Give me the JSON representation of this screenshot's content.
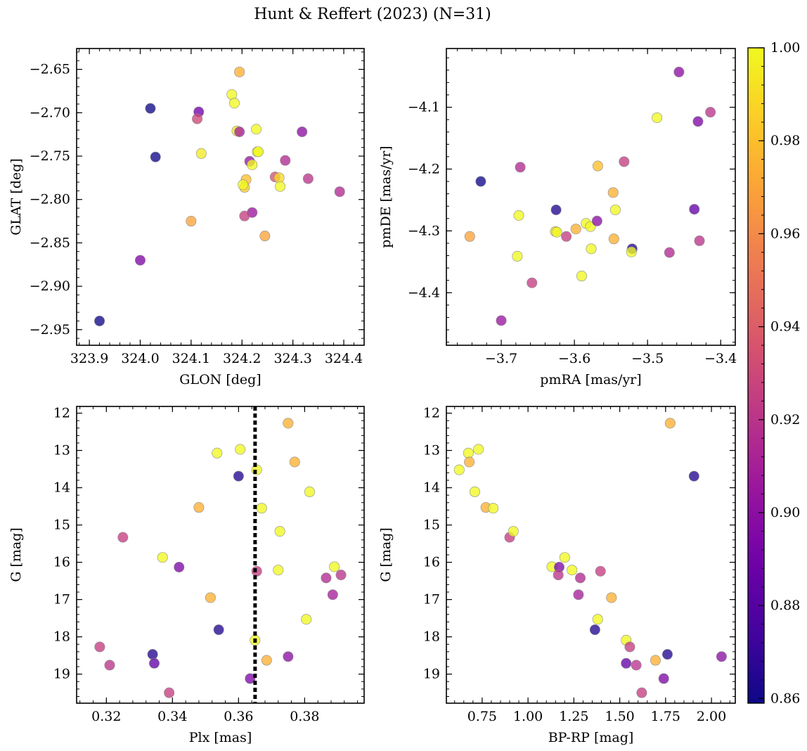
{
  "title": "Hunt & Reffert (2023) (N=31)",
  "colors": {
    "cmap": [
      "#0d0887",
      "#46039f",
      "#7201a8",
      "#9c179e",
      "#bd3786",
      "#d8576b",
      "#ed7953",
      "#fb9f3a",
      "#fdca26",
      "#f0f921"
    ],
    "marker_alpha": 0.78,
    "marker_edge": "#8c8c8c",
    "vline": "#000000"
  },
  "chart_data": [
    {
      "type": "scatter",
      "name": "glon-glat",
      "xlabel": "GLON [deg]",
      "ylabel": "GLAT [deg]",
      "xlim": [
        323.875,
        324.44
      ],
      "ylim": [
        -2.968,
        -2.626
      ],
      "xticks": [
        323.9,
        324.0,
        324.1,
        324.2,
        324.3,
        324.4
      ],
      "xtick_labels": [
        "323.9",
        "324.0",
        "324.1",
        "324.2",
        "324.3",
        "324.4"
      ],
      "yticks": [
        -2.65,
        -2.7,
        -2.75,
        -2.8,
        -2.85,
        -2.9,
        -2.95
      ],
      "ytick_labels": [
        "−2.65",
        "−2.70",
        "−2.75",
        "−2.80",
        "−2.85",
        "−2.90",
        "−2.95"
      ],
      "points": [
        {
          "x": 323.92,
          "y": -2.94,
          "c": 0.86
        },
        {
          "x": 324.02,
          "y": -2.695,
          "c": 0.86
        },
        {
          "x": 324.03,
          "y": -2.751,
          "c": 0.86
        },
        {
          "x": 324.0,
          "y": -2.87,
          "c": 0.895
        },
        {
          "x": 324.115,
          "y": -2.699,
          "c": 0.89
        },
        {
          "x": 324.112,
          "y": -2.707,
          "c": 0.93
        },
        {
          "x": 324.12,
          "y": -2.747,
          "c": 0.995
        },
        {
          "x": 324.1,
          "y": -2.825,
          "c": 0.97
        },
        {
          "x": 324.18,
          "y": -2.679,
          "c": 1.0
        },
        {
          "x": 324.185,
          "y": -2.689,
          "c": 1.0
        },
        {
          "x": 324.195,
          "y": -2.653,
          "c": 0.975
        },
        {
          "x": 324.19,
          "y": -2.721,
          "c": 0.995
        },
        {
          "x": 324.195,
          "y": -2.722,
          "c": 0.91
        },
        {
          "x": 324.228,
          "y": -2.719,
          "c": 1.0
        },
        {
          "x": 324.23,
          "y": -2.745,
          "c": 1.0
        },
        {
          "x": 324.232,
          "y": -2.745,
          "c": 1.0
        },
        {
          "x": 324.215,
          "y": -2.756,
          "c": 0.905
        },
        {
          "x": 324.22,
          "y": -2.76,
          "c": 1.0
        },
        {
          "x": 324.208,
          "y": -2.777,
          "c": 0.98
        },
        {
          "x": 324.205,
          "y": -2.786,
          "c": 0.985
        },
        {
          "x": 324.202,
          "y": -2.783,
          "c": 1.0
        },
        {
          "x": 324.22,
          "y": -2.815,
          "c": 0.905
        },
        {
          "x": 324.205,
          "y": -2.819,
          "c": 0.925
        },
        {
          "x": 324.245,
          "y": -2.842,
          "c": 0.97
        },
        {
          "x": 324.265,
          "y": -2.774,
          "c": 0.935
        },
        {
          "x": 324.273,
          "y": -2.775,
          "c": 0.99
        },
        {
          "x": 324.275,
          "y": -2.785,
          "c": 1.0
        },
        {
          "x": 324.285,
          "y": -2.755,
          "c": 0.915
        },
        {
          "x": 324.318,
          "y": -2.722,
          "c": 0.9
        },
        {
          "x": 324.33,
          "y": -2.776,
          "c": 0.92
        },
        {
          "x": 324.392,
          "y": -2.791,
          "c": 0.915
        }
      ]
    },
    {
      "type": "scatter",
      "name": "pmra-pmde",
      "xlabel": "pmRA [mas/yr]",
      "ylabel": "pmDE [mas/yr]",
      "xlim": [
        -3.775,
        -3.38
      ],
      "ylim": [
        -4.485,
        -4.005
      ],
      "xticks": [
        -3.7,
        -3.6,
        -3.5,
        -3.4
      ],
      "xtick_labels": [
        "−3.7",
        "−3.6",
        "−3.5",
        "−3.4"
      ],
      "yticks": [
        -4.1,
        -4.2,
        -4.3,
        -4.4
      ],
      "ytick_labels": [
        "−4.1",
        "−4.2",
        "−4.3",
        "−4.4"
      ],
      "points": [
        {
          "x": -3.728,
          "y": -4.22,
          "c": 0.86
        },
        {
          "x": -3.743,
          "y": -4.309,
          "c": 0.97
        },
        {
          "x": -3.7,
          "y": -4.445,
          "c": 0.905
        },
        {
          "x": -3.674,
          "y": -4.197,
          "c": 0.915
        },
        {
          "x": -3.676,
          "y": -4.275,
          "c": 1.0
        },
        {
          "x": -3.678,
          "y": -4.341,
          "c": 1.0
        },
        {
          "x": -3.658,
          "y": -4.384,
          "c": 0.925
        },
        {
          "x": -3.625,
          "y": -4.266,
          "c": 0.865
        },
        {
          "x": -3.626,
          "y": -4.301,
          "c": 0.99
        },
        {
          "x": -3.624,
          "y": -4.302,
          "c": 1.0
        },
        {
          "x": -3.611,
          "y": -4.309,
          "c": 0.925
        },
        {
          "x": -3.598,
          "y": -4.297,
          "c": 0.975
        },
        {
          "x": -3.584,
          "y": -4.288,
          "c": 1.0
        },
        {
          "x": -3.578,
          "y": -4.293,
          "c": 1.0
        },
        {
          "x": -3.577,
          "y": -4.329,
          "c": 1.0
        },
        {
          "x": -3.569,
          "y": -4.284,
          "c": 0.9
        },
        {
          "x": -3.568,
          "y": -4.195,
          "c": 0.98
        },
        {
          "x": -3.59,
          "y": -4.373,
          "c": 1.0
        },
        {
          "x": -3.547,
          "y": -4.238,
          "c": 0.975
        },
        {
          "x": -3.546,
          "y": -4.313,
          "c": 0.975
        },
        {
          "x": -3.544,
          "y": -4.266,
          "c": 1.0
        },
        {
          "x": -3.532,
          "y": -4.188,
          "c": 0.925
        },
        {
          "x": -3.521,
          "y": -4.329,
          "c": 0.865
        },
        {
          "x": -3.522,
          "y": -4.334,
          "c": 1.0
        },
        {
          "x": -3.487,
          "y": -4.117,
          "c": 1.0
        },
        {
          "x": -3.47,
          "y": -4.335,
          "c": 0.915
        },
        {
          "x": -3.457,
          "y": -4.043,
          "c": 0.9
        },
        {
          "x": -3.436,
          "y": -4.265,
          "c": 0.885
        },
        {
          "x": -3.431,
          "y": -4.123,
          "c": 0.895
        },
        {
          "x": -3.429,
          "y": -4.316,
          "c": 0.92
        },
        {
          "x": -3.414,
          "y": -4.108,
          "c": 0.92
        }
      ]
    },
    {
      "type": "scatter",
      "name": "plx-g",
      "xlabel": "Plx [mas]",
      "ylabel": "G [mag]",
      "xlim": [
        0.311,
        0.398
      ],
      "ylim": [
        19.78,
        11.82
      ],
      "xticks": [
        0.32,
        0.34,
        0.36,
        0.38
      ],
      "xtick_labels": [
        "0.32",
        "0.34",
        "0.36",
        "0.38"
      ],
      "yticks": [
        12,
        13,
        14,
        15,
        16,
        17,
        18,
        19
      ],
      "ytick_labels": [
        "12",
        "13",
        "14",
        "15",
        "16",
        "17",
        "18",
        "19"
      ],
      "vline": 0.365,
      "points": [
        {
          "x": 0.318,
          "y": 18.27,
          "c": 0.925
        },
        {
          "x": 0.321,
          "y": 18.76,
          "c": 0.92
        },
        {
          "x": 0.325,
          "y": 15.33,
          "c": 0.925
        },
        {
          "x": 0.334,
          "y": 18.47,
          "c": 0.865
        },
        {
          "x": 0.3345,
          "y": 18.71,
          "c": 0.885
        },
        {
          "x": 0.337,
          "y": 15.87,
          "c": 1.0
        },
        {
          "x": 0.339,
          "y": 19.5,
          "c": 0.925
        },
        {
          "x": 0.342,
          "y": 16.13,
          "c": 0.895
        },
        {
          "x": 0.348,
          "y": 14.53,
          "c": 0.975
        },
        {
          "x": 0.3515,
          "y": 16.95,
          "c": 0.975
        },
        {
          "x": 0.354,
          "y": 17.81,
          "c": 0.865
        },
        {
          "x": 0.3535,
          "y": 13.07,
          "c": 1.0
        },
        {
          "x": 0.36,
          "y": 13.69,
          "c": 0.865
        },
        {
          "x": 0.3605,
          "y": 12.97,
          "c": 1.0
        },
        {
          "x": 0.3635,
          "y": 19.12,
          "c": 0.895
        },
        {
          "x": 0.365,
          "y": 18.09,
          "c": 1.0
        },
        {
          "x": 0.3655,
          "y": 13.52,
          "c": 1.0
        },
        {
          "x": 0.3655,
          "y": 16.24,
          "c": 0.925
        },
        {
          "x": 0.367,
          "y": 14.55,
          "c": 1.0
        },
        {
          "x": 0.3685,
          "y": 18.63,
          "c": 0.975
        },
        {
          "x": 0.372,
          "y": 16.21,
          "c": 1.0
        },
        {
          "x": 0.3725,
          "y": 15.17,
          "c": 1.0
        },
        {
          "x": 0.375,
          "y": 12.27,
          "c": 0.975
        },
        {
          "x": 0.375,
          "y": 18.53,
          "c": 0.9
        },
        {
          "x": 0.377,
          "y": 13.31,
          "c": 0.975
        },
        {
          "x": 0.3805,
          "y": 17.53,
          "c": 1.0
        },
        {
          "x": 0.3815,
          "y": 14.11,
          "c": 1.0
        },
        {
          "x": 0.3865,
          "y": 16.42,
          "c": 0.915
        },
        {
          "x": 0.3885,
          "y": 16.87,
          "c": 0.91
        },
        {
          "x": 0.389,
          "y": 16.12,
          "c": 1.0
        },
        {
          "x": 0.391,
          "y": 16.34,
          "c": 0.92
        }
      ]
    },
    {
      "type": "scatter",
      "name": "bprp-g",
      "xlabel": "BP-RP [mag]",
      "ylabel": "G [mag]",
      "xlim": [
        0.555,
        2.13
      ],
      "ylim": [
        19.78,
        11.82
      ],
      "xticks": [
        0.75,
        1.0,
        1.25,
        1.5,
        1.75,
        2.0
      ],
      "xtick_labels": [
        "0.75",
        "1.00",
        "1.25",
        "1.50",
        "1.75",
        "2.00"
      ],
      "yticks": [
        12,
        13,
        14,
        15,
        16,
        17,
        18,
        19
      ],
      "ytick_labels": [
        "12",
        "13",
        "14",
        "15",
        "16",
        "17",
        "18",
        "19"
      ],
      "points": [
        {
          "x": 0.625,
          "y": 13.52,
          "c": 1.0
        },
        {
          "x": 0.675,
          "y": 13.07,
          "c": 1.0
        },
        {
          "x": 0.68,
          "y": 13.31,
          "c": 0.975
        },
        {
          "x": 0.73,
          "y": 12.97,
          "c": 1.0
        },
        {
          "x": 0.71,
          "y": 14.11,
          "c": 1.0
        },
        {
          "x": 0.77,
          "y": 14.53,
          "c": 0.975
        },
        {
          "x": 0.81,
          "y": 14.55,
          "c": 1.0
        },
        {
          "x": 0.9,
          "y": 15.33,
          "c": 0.925
        },
        {
          "x": 0.92,
          "y": 15.17,
          "c": 1.0
        },
        {
          "x": 1.13,
          "y": 16.12,
          "c": 1.0
        },
        {
          "x": 1.17,
          "y": 16.13,
          "c": 0.895
        },
        {
          "x": 1.165,
          "y": 16.34,
          "c": 0.92
        },
        {
          "x": 1.2,
          "y": 15.87,
          "c": 1.0
        },
        {
          "x": 1.24,
          "y": 16.21,
          "c": 1.0
        },
        {
          "x": 1.275,
          "y": 16.87,
          "c": 0.91
        },
        {
          "x": 1.285,
          "y": 16.42,
          "c": 0.915
        },
        {
          "x": 1.365,
          "y": 17.81,
          "c": 0.865
        },
        {
          "x": 1.38,
          "y": 17.53,
          "c": 1.0
        },
        {
          "x": 1.395,
          "y": 16.24,
          "c": 0.925
        },
        {
          "x": 1.455,
          "y": 16.95,
          "c": 0.975
        },
        {
          "x": 1.535,
          "y": 18.09,
          "c": 1.0
        },
        {
          "x": 1.535,
          "y": 18.71,
          "c": 0.885
        },
        {
          "x": 1.555,
          "y": 18.27,
          "c": 0.925
        },
        {
          "x": 1.59,
          "y": 18.76,
          "c": 0.92
        },
        {
          "x": 1.62,
          "y": 19.5,
          "c": 0.925
        },
        {
          "x": 1.695,
          "y": 18.63,
          "c": 0.975
        },
        {
          "x": 1.74,
          "y": 19.12,
          "c": 0.895
        },
        {
          "x": 1.76,
          "y": 18.47,
          "c": 0.865
        },
        {
          "x": 1.775,
          "y": 12.27,
          "c": 0.975
        },
        {
          "x": 1.905,
          "y": 13.69,
          "c": 0.865
        },
        {
          "x": 2.055,
          "y": 18.53,
          "c": 0.9
        }
      ]
    }
  ],
  "colorbar": {
    "vmin": 0.859,
    "vmax": 1.0,
    "ticks": [
      0.86,
      0.88,
      0.9,
      0.92,
      0.94,
      0.96,
      0.98,
      1.0
    ],
    "tick_labels": [
      "0.86",
      "0.88",
      "0.90",
      "0.92",
      "0.94",
      "0.96",
      "0.98",
      "1.00"
    ]
  }
}
